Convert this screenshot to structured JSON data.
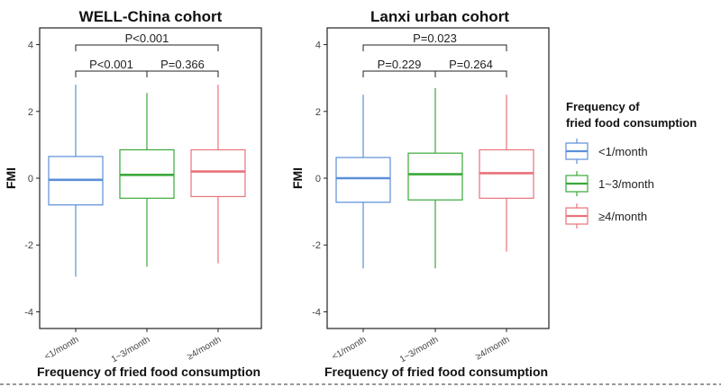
{
  "chart_data": [
    {
      "type": "box",
      "title": "WELL-China cohort",
      "xlabel": "Frequency of fried food consumption",
      "ylabel": "FMI",
      "ylim": [
        -4.5,
        4.5
      ],
      "yticks": [
        -4,
        -2,
        0,
        2,
        4
      ],
      "categories": [
        "<1/month",
        "1~3/month",
        "≥4/month"
      ],
      "colors": [
        "#5b8fd9",
        "#3aa83a",
        "#e8737a"
      ],
      "boxes": [
        {
          "whisker_low": -2.95,
          "q1": -0.8,
          "median": -0.05,
          "q3": 0.65,
          "whisker_high": 2.8
        },
        {
          "whisker_low": -2.65,
          "q1": -0.6,
          "median": 0.1,
          "q3": 0.85,
          "whisker_high": 2.55
        },
        {
          "whisker_low": -2.55,
          "q1": -0.55,
          "median": 0.2,
          "q3": 0.85,
          "whisker_high": 2.8
        }
      ],
      "annotations": [
        {
          "from": 0,
          "to": 2,
          "label": "P<0.001",
          "level": 2
        },
        {
          "from": 0,
          "to": 1,
          "label": "P<0.001",
          "level": 1
        },
        {
          "from": 1,
          "to": 2,
          "label": "P=0.366",
          "level": 1
        }
      ]
    },
    {
      "type": "box",
      "title": "Lanxi urban cohort",
      "xlabel": "Frequency of fried food consumption",
      "ylabel": "FMI",
      "ylim": [
        -4.5,
        4.5
      ],
      "yticks": [
        -4,
        -2,
        0,
        2,
        4
      ],
      "categories": [
        "<1/month",
        "1~3/month",
        "≥4/month"
      ],
      "colors": [
        "#5b8fd9",
        "#3aa83a",
        "#e8737a"
      ],
      "boxes": [
        {
          "whisker_low": -2.7,
          "q1": -0.72,
          "median": 0.0,
          "q3": 0.62,
          "whisker_high": 2.5
        },
        {
          "whisker_low": -2.7,
          "q1": -0.65,
          "median": 0.12,
          "q3": 0.75,
          "whisker_high": 2.7
        },
        {
          "whisker_low": -2.2,
          "q1": -0.6,
          "median": 0.15,
          "q3": 0.85,
          "whisker_high": 2.5
        }
      ],
      "annotations": [
        {
          "from": 0,
          "to": 2,
          "label": "P=0.023",
          "level": 2
        },
        {
          "from": 0,
          "to": 1,
          "label": "P=0.229",
          "level": 1
        },
        {
          "from": 1,
          "to": 2,
          "label": "P=0.264",
          "level": 1
        }
      ]
    }
  ],
  "legend": {
    "title_line1": "Frequency of",
    "title_line2": "fried food consumption",
    "placement": "right",
    "items": [
      {
        "label": "<1/month",
        "color": "#5b8fd9"
      },
      {
        "label": "1~3/month",
        "color": "#3aa83a"
      },
      {
        "label": "≥4/month",
        "color": "#e8737a"
      }
    ]
  }
}
